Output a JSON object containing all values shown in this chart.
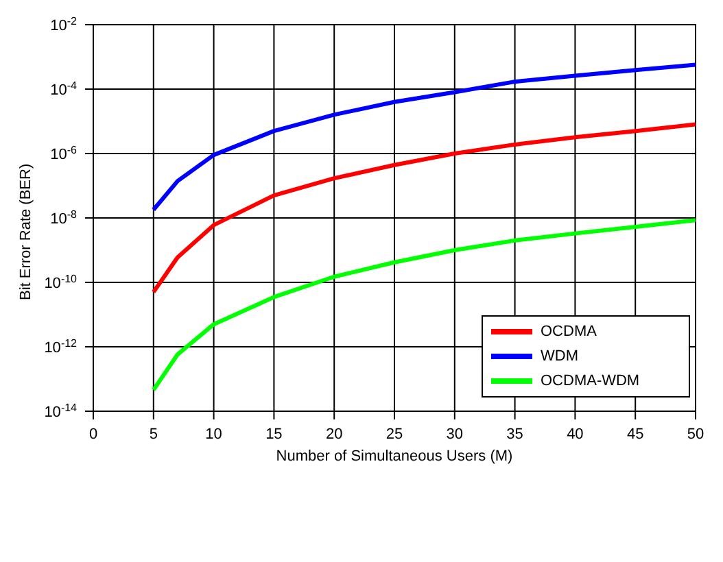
{
  "chart_data": {
    "type": "line",
    "xlabel": "Number of Simultaneous Users (M)",
    "ylabel": "Bit Error Rate (BER)",
    "x": [
      5,
      7,
      10,
      15,
      20,
      25,
      30,
      35,
      40,
      45,
      50
    ],
    "series": [
      {
        "name": "OCDMA",
        "color": "#ff0000",
        "values": [
          5e-11,
          6e-10,
          6e-09,
          5e-08,
          1.7e-07,
          4.4e-07,
          1e-06,
          1.9e-06,
          3.2e-06,
          5e-06,
          8e-06
        ]
      },
      {
        "name": "WDM",
        "color": "#0000ff",
        "values": [
          1.8e-08,
          1.4e-07,
          9e-07,
          5e-06,
          1.6e-05,
          4e-05,
          8e-05,
          0.00017,
          0.00026,
          0.00039,
          0.00057
        ]
      },
      {
        "name": "OCDMA-WDM",
        "color": "#00ff00",
        "values": [
          4.6e-14,
          5.8e-13,
          5e-12,
          3.5e-11,
          1.5e-10,
          4.2e-10,
          1e-09,
          2e-09,
          3.3e-09,
          5.3e-09,
          8.5e-09
        ]
      }
    ],
    "log": "y",
    "xlim": [
      0,
      50
    ],
    "xticks": [
      0,
      5,
      10,
      15,
      20,
      25,
      30,
      35,
      40,
      45,
      50
    ],
    "ylim": [
      1e-14,
      0.01
    ],
    "yticks": [
      {
        "value": 1e-14,
        "label": "10$^{-14}$"
      },
      {
        "value": 1e-12,
        "label": "10$^{-12}$"
      },
      {
        "value": 1e-10,
        "label": "10$^{-10}$"
      },
      {
        "value": 1e-08,
        "label": "10$^{-8}$"
      },
      {
        "value": 1e-06,
        "label": "10$^{-6}$"
      },
      {
        "value": 0.0001,
        "label": "10$^{-4}$"
      },
      {
        "value": 0.01,
        "label": "10$^{-2}$"
      }
    ],
    "grid": true,
    "legend": "bottom right",
    "marker": "none",
    "line_style": "solid"
  }
}
